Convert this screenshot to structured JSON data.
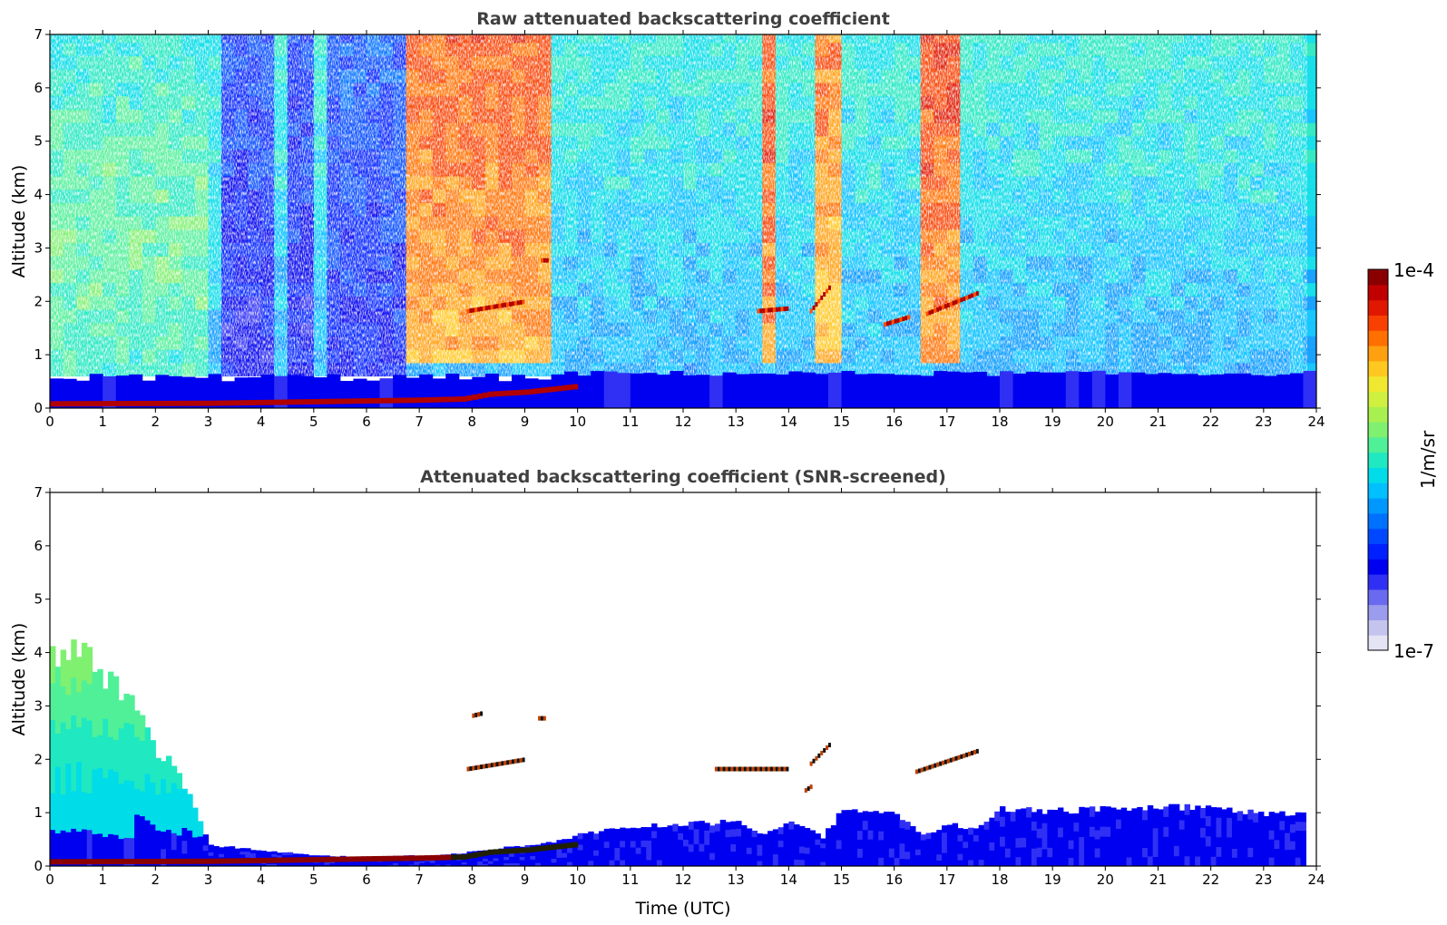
{
  "chart_data": [
    {
      "type": "heatmap",
      "title": "Raw attenuated backscattering coefficient",
      "xlabel": "",
      "ylabel": "Altitude (km)",
      "xlim": [
        0,
        24
      ],
      "ylim": [
        0,
        7
      ],
      "x_ticks": [
        "0",
        "1",
        "2",
        "3",
        "4",
        "5",
        "6",
        "7",
        "8",
        "9",
        "10",
        "11",
        "12",
        "13",
        "14",
        "15",
        "16",
        "17",
        "18",
        "19",
        "20",
        "21",
        "22",
        "23",
        "24"
      ],
      "y_ticks": [
        "0",
        "1",
        "2",
        "3",
        "4",
        "5",
        "6",
        "7"
      ],
      "data_extent_hours": [
        0,
        23.8
      ],
      "features": {
        "surface_layer": [
          [
            0,
            0.08
          ],
          [
            3,
            0.09
          ],
          [
            5,
            0.12
          ],
          [
            7,
            0.15
          ],
          [
            7.8,
            0.17
          ],
          [
            8.3,
            0.26
          ],
          [
            9,
            0.3
          ],
          [
            9.9,
            0.4
          ]
        ],
        "cloud_segments": [
          {
            "x": [
              7.9,
              9.0
            ],
            "y": [
              1.8,
              1.98
            ]
          },
          {
            "x": [
              9.3,
              9.45
            ],
            "y": [
              2.75,
              2.75
            ]
          },
          {
            "x": [
              13.4,
              14.0
            ],
            "y": [
              1.8,
              1.85
            ]
          },
          {
            "x": [
              14.4,
              14.8
            ],
            "y": [
              1.8,
              2.3
            ]
          },
          {
            "x": [
              15.8,
              16.3
            ],
            "y": [
              1.55,
              1.7
            ]
          },
          {
            "x": [
              16.6,
              17.6
            ],
            "y": [
              1.75,
              2.15
            ]
          }
        ],
        "high_signal_columns": [
          {
            "x": [
              6.6,
              9.5
            ],
            "level": 0.88
          },
          {
            "x": [
              13.45,
              13.65
            ],
            "level": 0.9
          },
          {
            "x": [
              14.3,
              14.8
            ],
            "level": 0.85
          },
          {
            "x": [
              16.5,
              17.2
            ],
            "level": 0.9
          }
        ],
        "low_signal_columns": [
          {
            "x": [
              3.15,
              4.2
            ],
            "level": 0.2
          },
          {
            "x": [
              4.4,
              4.95
            ],
            "level": 0.2
          },
          {
            "x": [
              5.1,
              6.55
            ],
            "level": 0.22
          }
        ]
      }
    },
    {
      "type": "heatmap",
      "title": "Attenuated backscattering coefficient (SNR-screened)",
      "xlabel": "Time (UTC)",
      "ylabel": "Altitude (km)",
      "xlim": [
        0,
        24
      ],
      "ylim": [
        0,
        7
      ],
      "x_ticks": [
        "0",
        "1",
        "2",
        "3",
        "4",
        "5",
        "6",
        "7",
        "8",
        "9",
        "10",
        "11",
        "12",
        "13",
        "14",
        "15",
        "16",
        "17",
        "18",
        "19",
        "20",
        "21",
        "22",
        "23",
        "24"
      ],
      "y_ticks": [
        "0",
        "1",
        "2",
        "3",
        "4",
        "5",
        "6",
        "7"
      ],
      "data_extent_hours": [
        0,
        23.8
      ],
      "features": {
        "boundary_layer_top": [
          [
            0,
            4.0
          ],
          [
            0.5,
            4.2
          ],
          [
            1.0,
            3.6
          ],
          [
            1.5,
            3.2
          ],
          [
            2.0,
            2.2
          ],
          [
            2.3,
            2.0
          ],
          [
            2.6,
            1.3
          ],
          [
            3.0,
            0.4
          ],
          [
            4.0,
            0.3
          ],
          [
            5.0,
            0.2
          ],
          [
            6.0,
            0.18
          ],
          [
            7.0,
            0.2
          ],
          [
            7.8,
            0.25
          ],
          [
            8.5,
            0.35
          ],
          [
            9.5,
            0.45
          ],
          [
            10.0,
            0.6
          ],
          [
            11.0,
            0.75
          ],
          [
            12.0,
            0.8
          ],
          [
            13.0,
            0.85
          ],
          [
            13.5,
            0.6
          ],
          [
            14.0,
            0.9
          ],
          [
            14.6,
            0.55
          ],
          [
            15.0,
            1.1
          ],
          [
            16.0,
            1.0
          ],
          [
            16.5,
            0.6
          ],
          [
            17.0,
            0.8
          ],
          [
            17.5,
            0.7
          ],
          [
            18.0,
            1.1
          ],
          [
            19.0,
            1.05
          ],
          [
            20.0,
            1.1
          ],
          [
            21.0,
            1.15
          ],
          [
            22.0,
            1.1
          ],
          [
            23.0,
            1.0
          ],
          [
            23.8,
            1.0
          ]
        ],
        "cloud_segments": [
          {
            "x": [
              7.9,
              9.0
            ],
            "y": [
              1.8,
              1.98
            ]
          },
          {
            "x": [
              8.0,
              8.2
            ],
            "y": [
              2.8,
              2.85
            ]
          },
          {
            "x": [
              9.25,
              9.4
            ],
            "y": [
              2.75,
              2.75
            ]
          },
          {
            "x": [
              12.6,
              14.0
            ],
            "y": [
              1.8,
              1.8
            ]
          },
          {
            "x": [
              14.4,
              14.8
            ],
            "y": [
              1.9,
              2.3
            ]
          },
          {
            "x": [
              14.3,
              14.45
            ],
            "y": [
              1.4,
              1.5
            ]
          },
          {
            "x": [
              16.4,
              17.6
            ],
            "y": [
              1.75,
              2.15
            ]
          }
        ]
      }
    }
  ],
  "colorbar": {
    "label": "1/m/sr",
    "max_label": "1e-4",
    "min_label": "1e-7",
    "range": [
      1e-07,
      0.0001
    ],
    "scale": "log",
    "colormap": [
      "#e4e4f5",
      "#c4c4ee",
      "#9c9cee",
      "#6a6af0",
      "#3030f5",
      "#0000f0",
      "#0020ff",
      "#0048ff",
      "#0070ff",
      "#0098ff",
      "#00c0ff",
      "#00dce8",
      "#20e8c0",
      "#50f098",
      "#80f070",
      "#a8f050",
      "#d0f040",
      "#f0e830",
      "#ffc820",
      "#ffa010",
      "#ff7000",
      "#f84000",
      "#e01800",
      "#c00000",
      "#8a0000"
    ]
  }
}
